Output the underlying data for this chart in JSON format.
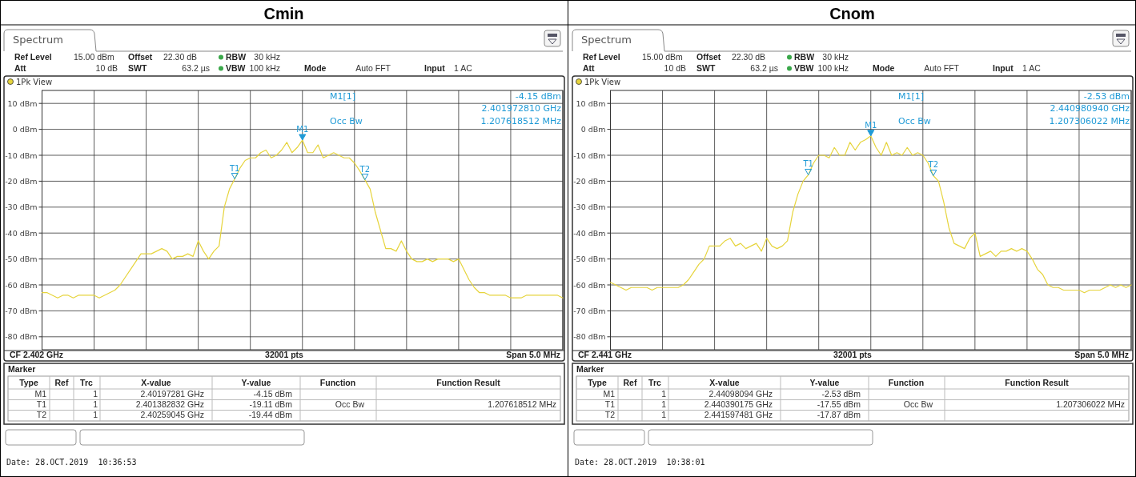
{
  "chart_data": [
    {
      "type": "line",
      "title": "Cmin",
      "categories": [
        null,
        null,
        null,
        null,
        null,
        null,
        null,
        null,
        null,
        null,
        null,
        null,
        null,
        null,
        null,
        null,
        null,
        null,
        null,
        null,
        null,
        null,
        null,
        null,
        null,
        null,
        null,
        null,
        null,
        null,
        null,
        null,
        null,
        null,
        null,
        null,
        null,
        null,
        null,
        null,
        null,
        null,
        null,
        null,
        null,
        null,
        null,
        null,
        null,
        null,
        null,
        null,
        null,
        null,
        null,
        null,
        null,
        null,
        null,
        null,
        null,
        null,
        null,
        null,
        null,
        null,
        null,
        null,
        null,
        null,
        null,
        null,
        null,
        null,
        null,
        null,
        null,
        null,
        null,
        null,
        null,
        null,
        null,
        null,
        null,
        null,
        null,
        null,
        null,
        null,
        null,
        null,
        null,
        null,
        null,
        null,
        null,
        null,
        null,
        null,
        null
      ],
      "series": [
        {
          "color": "#e6d43c",
          "values": [
            -63,
            -63,
            -64,
            -65,
            -64,
            -64,
            -65,
            -64,
            -64,
            -64,
            -64,
            -65,
            -64,
            -63,
            -62,
            -60,
            -57,
            -54,
            -51,
            -48,
            -48,
            -48,
            -47,
            -46,
            -47,
            -50,
            -49,
            -49,
            -48,
            -49,
            -43,
            -47,
            -50,
            -47,
            -45,
            -30,
            -23,
            -19.11,
            -15,
            -12,
            -11,
            -11,
            -9,
            -8,
            -11,
            -10,
            -8,
            -5,
            -9,
            -7,
            -4.15,
            -9,
            -9,
            -6,
            -11,
            -10,
            -9,
            -10,
            -11,
            -11,
            -13,
            -16,
            -19.44,
            -23,
            -32,
            -39,
            -46,
            -46,
            -47,
            -43,
            -47,
            -50,
            -51,
            -51,
            -50,
            -51,
            -50,
            -50,
            -50,
            -51,
            -50,
            -54,
            -58,
            -61,
            -63,
            -63,
            -64,
            -64,
            -64,
            -64,
            -65,
            -65,
            -65,
            -64,
            -64,
            -64,
            -64,
            -64,
            -64,
            -64,
            -65
          ]
        }
      ],
      "ylim": [
        -85,
        15
      ],
      "yticks": [
        {
          "value": -80,
          "label": "-80 dBm"
        },
        {
          "value": -70,
          "label": "-70 dBm"
        },
        {
          "value": -60,
          "label": "-60 dBm"
        },
        {
          "value": -50,
          "label": "-50 dBm"
        },
        {
          "value": -40,
          "label": "-40 dBm"
        },
        {
          "value": -30,
          "label": "-30 dBm"
        },
        {
          "value": -20,
          "label": "-20 dBm"
        },
        {
          "value": -10,
          "label": "-10 dBm"
        },
        {
          "value": 0,
          "label": "0 dBm"
        },
        {
          "value": 10,
          "label": "10 dBm"
        }
      ],
      "tick_labels": "y",
      "grid": true,
      "annotations": [
        "Spectrum",
        "Ref Level",
        "15.00 dBm",
        "Offset",
        "22.30 dB",
        "RBW",
        "30 kHz",
        "Att",
        "10 dB",
        "SWT",
        "63.2 µs",
        "VBW",
        "100 kHz",
        "Mode",
        "Auto FFT",
        "Input",
        "1 AC",
        "1Pk View",
        "M1[1]",
        "-4.15 dBm",
        "2.401972810 GHz",
        "Occ Bw",
        "1.207618512 MHz",
        "CF 2.402 GHz",
        "32001 pts",
        "Span 5.0 MHz",
        "Marker",
        "Type",
        "Ref",
        "Trc",
        "X-value",
        "Y-value",
        "Function",
        "Function Result",
        "M1",
        "1",
        "2.40197281 GHz",
        "-4.15 dBm",
        "T1",
        "1",
        "2.401382832 GHz",
        "-19.11 dBm",
        "Occ Bw",
        "1.207618512 MHz",
        "T2",
        "1",
        "2.40259045 GHz",
        "-19.44 dBm",
        "Date: 28.OCT.2019  10:36:53",
        {
          "text": "M1",
          "y": -4.15
        },
        {
          "text": "T1",
          "y": -19.11
        },
        {
          "text": "T2",
          "y": -19.44
        }
      ]
    },
    {
      "type": "line",
      "title": "Cnom",
      "categories": [
        null,
        null,
        null,
        null,
        null,
        null,
        null,
        null,
        null,
        null,
        null,
        null,
        null,
        null,
        null,
        null,
        null,
        null,
        null,
        null,
        null,
        null,
        null,
        null,
        null,
        null,
        null,
        null,
        null,
        null,
        null,
        null,
        null,
        null,
        null,
        null,
        null,
        null,
        null,
        null,
        null,
        null,
        null,
        null,
        null,
        null,
        null,
        null,
        null,
        null,
        null,
        null,
        null,
        null,
        null,
        null,
        null,
        null,
        null,
        null,
        null,
        null,
        null,
        null,
        null,
        null,
        null,
        null,
        null,
        null,
        null,
        null,
        null,
        null,
        null,
        null,
        null,
        null,
        null,
        null,
        null,
        null,
        null,
        null,
        null,
        null,
        null,
        null,
        null,
        null,
        null,
        null,
        null,
        null,
        null,
        null,
        null,
        null,
        null,
        null,
        null
      ],
      "series": [
        {
          "color": "#e6d43c",
          "values": [
            -59,
            -60,
            -61,
            -62,
            -61,
            -61,
            -61,
            -61,
            -62,
            -61,
            -61,
            -61,
            -61,
            -61,
            -60,
            -58,
            -55,
            -52,
            -50,
            -45,
            -45,
            -45,
            -43,
            -42,
            -45,
            -44,
            -46,
            -45,
            -44,
            -47,
            -42,
            -45,
            -46,
            -45,
            -43,
            -32,
            -25,
            -20,
            -17.55,
            -13,
            -10,
            -10,
            -11,
            -7,
            -10,
            -10,
            -5,
            -8,
            -5,
            -4,
            -2.53,
            -7,
            -10,
            -5,
            -10,
            -9,
            -10,
            -7,
            -10,
            -9,
            -10,
            -13,
            -17.87,
            -20,
            -28,
            -38,
            -44,
            -45,
            -46,
            -42,
            -40,
            -49,
            -48,
            -47,
            -49,
            -47,
            -47,
            -46,
            -47,
            -46,
            -47,
            -50,
            -54,
            -56,
            -60,
            -61,
            -61,
            -62,
            -62,
            -62,
            -62,
            -63,
            -62,
            -62,
            -62,
            -61,
            -60,
            -61,
            -60,
            -61,
            -60
          ]
        }
      ],
      "ylim": [
        -85,
        15
      ],
      "yticks": [
        {
          "value": -80,
          "label": "-80 dBm"
        },
        {
          "value": -70,
          "label": "-70 dBm"
        },
        {
          "value": -60,
          "label": "-60 dBm"
        },
        {
          "value": -50,
          "label": "-50 dBm"
        },
        {
          "value": -40,
          "label": "-40 dBm"
        },
        {
          "value": -30,
          "label": "-30 dBm"
        },
        {
          "value": -20,
          "label": "-20 dBm"
        },
        {
          "value": -10,
          "label": "-10 dBm"
        },
        {
          "value": 0,
          "label": "0 dBm"
        },
        {
          "value": 10,
          "label": "10 dBm"
        }
      ],
      "tick_labels": "y",
      "grid": true,
      "annotations": [
        "Spectrum",
        "Ref Level",
        "15.00 dBm",
        "Offset",
        "22.30 dB",
        "RBW",
        "30 kHz",
        "Att",
        "10 dB",
        "SWT",
        "63.2 µs",
        "VBW",
        "100 kHz",
        "Mode",
        "Auto FFT",
        "Input",
        "1 AC",
        "1Pk View",
        "M1[1]",
        "-2.53 dBm",
        "2.440980940 GHz",
        "Occ Bw",
        "1.207306022 MHz",
        "CF 2.441 GHz",
        "32001 pts",
        "Span 5.0 MHz",
        "Marker",
        "Type",
        "Ref",
        "Trc",
        "X-value",
        "Y-value",
        "Function",
        "Function Result",
        "M1",
        "1",
        "2.44098094 GHz",
        "-2.53 dBm",
        "T1",
        "1",
        "2.440390175 GHz",
        "-17.55 dBm",
        "Occ Bw",
        "1.207306022 MHz",
        "T2",
        "1",
        "2.441597481 GHz",
        "-17.87 dBm",
        "Date: 28.OCT.2019  10:38:01",
        {
          "text": "M1",
          "y": -2.53
        },
        {
          "text": "T1",
          "y": -17.55
        },
        {
          "text": "T2",
          "y": -17.87
        }
      ]
    }
  ]
}
